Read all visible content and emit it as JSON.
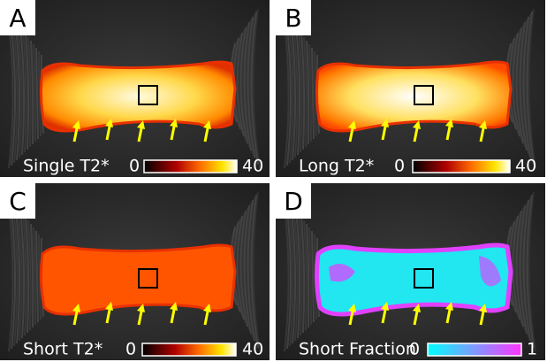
{
  "panels": [
    {
      "letter": "A",
      "caption": "Single T2*",
      "scale_min": 0,
      "scale_max": 40
    },
    {
      "letter": "B",
      "caption": "Long T2*",
      "scale_min": 0,
      "scale_max": 40
    },
    {
      "letter": "C",
      "caption": "Short T2*",
      "scale_min": 0,
      "scale_max": 40
    },
    {
      "letter": "D",
      "caption": "Short Fraction",
      "scale_min": 0,
      "scale_max": 1
    }
  ]
}
